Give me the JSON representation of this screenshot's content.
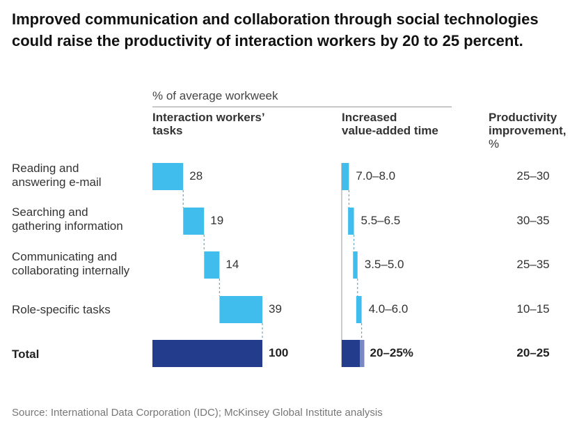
{
  "title": "Improved communication and collaboration through social technologies could raise the productivity of interaction workers by 20 to 25 percent.",
  "note": "% of average workweek",
  "headers": {
    "tasks": [
      "Interaction workers’",
      "tasks"
    ],
    "time": [
      "Increased",
      "value-added time"
    ],
    "improvement": [
      "Productivity",
      "improvement,",
      "%"
    ]
  },
  "rows": [
    {
      "label": [
        "Reading and",
        "answering e-mail"
      ],
      "share_label": "28",
      "time_label": "7.0–8.0",
      "improvement": "25–30"
    },
    {
      "label": [
        "Searching and",
        "gathering information"
      ],
      "share_label": "19",
      "time_label": "5.5–6.5",
      "improvement": "30–35"
    },
    {
      "label": [
        "Communicating and",
        "collaborating internally"
      ],
      "share_label": "14",
      "time_label": "3.5–5.0",
      "improvement": "25–35"
    },
    {
      "label": [
        "Role-specific tasks"
      ],
      "share_label": "39",
      "time_label": "4.0–6.0",
      "improvement": "10–15"
    }
  ],
  "total": {
    "label": "Total",
    "share_label": "100",
    "time_label": "20–25%",
    "improvement": "20–25"
  },
  "source": "Source: International Data Corporation (IDC); McKinsey Global Institute analysis",
  "colors": {
    "bar": "#41bded",
    "total": "#233d8c",
    "total_range": "#7b89c1",
    "connector": "#6aa6c8",
    "axis": "#999999"
  },
  "chart_data": [
    {
      "type": "bar",
      "title": "Interaction workers’ tasks",
      "ylabel": "% of average workweek",
      "categories": [
        "Reading and answering e-mail",
        "Searching and gathering information",
        "Communicating and collaborating internally",
        "Role-specific tasks",
        "Total"
      ],
      "values": [
        28,
        19,
        14,
        39,
        100
      ],
      "layout": "waterfall"
    },
    {
      "type": "bar",
      "title": "Increased value-added time",
      "categories": [
        "Reading and answering e-mail",
        "Searching and gathering information",
        "Communicating and collaborating internally",
        "Role-specific tasks",
        "Total"
      ],
      "ranges": [
        [
          7.0,
          8.0
        ],
        [
          5.5,
          6.5
        ],
        [
          3.5,
          5.0
        ],
        [
          4.0,
          6.0
        ],
        [
          20,
          25
        ]
      ],
      "layout": "waterfall"
    },
    {
      "type": "table",
      "title": "Productivity improvement, %",
      "categories": [
        "Reading and answering e-mail",
        "Searching and gathering information",
        "Communicating and collaborating internally",
        "Role-specific tasks",
        "Total"
      ],
      "values": [
        "25–30",
        "30–35",
        "25–35",
        "10–15",
        "20–25"
      ]
    }
  ]
}
